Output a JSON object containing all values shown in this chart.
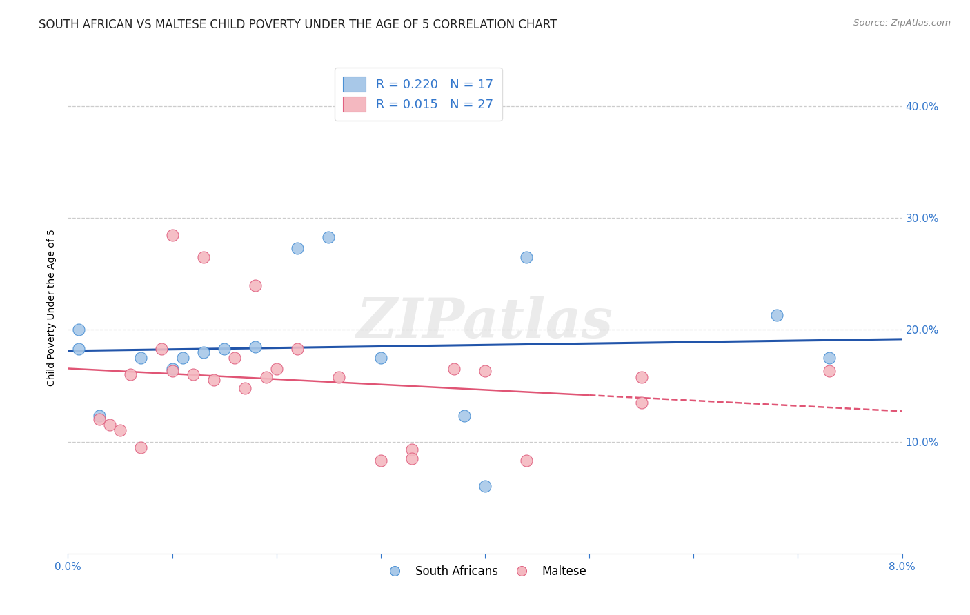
{
  "title": "SOUTH AFRICAN VS MALTESE CHILD POVERTY UNDER THE AGE OF 5 CORRELATION CHART",
  "source": "Source: ZipAtlas.com",
  "ylabel": "Child Poverty Under the Age of 5",
  "y_ticks": [
    0.1,
    0.2,
    0.3,
    0.4
  ],
  "y_tick_labels": [
    "10.0%",
    "20.0%",
    "30.0%",
    "40.0%"
  ],
  "xlim": [
    0.0,
    0.08
  ],
  "ylim": [
    0.0,
    0.44
  ],
  "sa_color": "#a8c8e8",
  "sa_edge_color": "#4a90d4",
  "maltese_color": "#f4b8c0",
  "maltese_edge_color": "#e06080",
  "sa_line_color": "#2255aa",
  "maltese_line_color": "#e05575",
  "legend_r_sa": "0.220",
  "legend_n_sa": "17",
  "legend_r_maltese": "0.015",
  "legend_n_maltese": "27",
  "watermark": "ZIPatlas",
  "south_africans_x": [
    0.001,
    0.001,
    0.003,
    0.007,
    0.01,
    0.011,
    0.013,
    0.015,
    0.018,
    0.022,
    0.025,
    0.03,
    0.038,
    0.04,
    0.044,
    0.068,
    0.073
  ],
  "south_africans_y": [
    0.2,
    0.183,
    0.123,
    0.175,
    0.165,
    0.175,
    0.18,
    0.183,
    0.185,
    0.273,
    0.283,
    0.175,
    0.123,
    0.06,
    0.265,
    0.213,
    0.175
  ],
  "maltese_x": [
    0.003,
    0.004,
    0.005,
    0.006,
    0.007,
    0.009,
    0.01,
    0.01,
    0.012,
    0.013,
    0.014,
    0.016,
    0.017,
    0.018,
    0.019,
    0.02,
    0.022,
    0.026,
    0.03,
    0.033,
    0.033,
    0.037,
    0.04,
    0.044,
    0.055,
    0.055,
    0.073
  ],
  "maltese_y": [
    0.12,
    0.115,
    0.11,
    0.16,
    0.095,
    0.183,
    0.285,
    0.163,
    0.16,
    0.265,
    0.155,
    0.175,
    0.148,
    0.24,
    0.158,
    0.165,
    0.183,
    0.158,
    0.083,
    0.093,
    0.085,
    0.165,
    0.163,
    0.083,
    0.158,
    0.135,
    0.163
  ],
  "background_color": "#ffffff",
  "grid_color": "#cccccc",
  "title_fontsize": 12,
  "axis_label_fontsize": 10,
  "tick_fontsize": 11,
  "tick_color": "#3377cc",
  "legend_fontsize": 13
}
